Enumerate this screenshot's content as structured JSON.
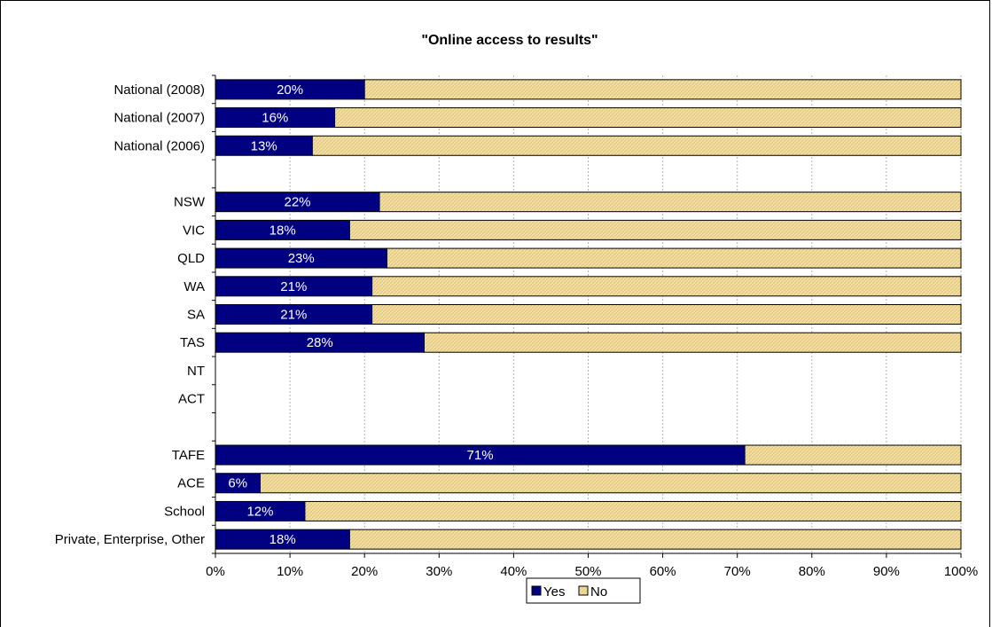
{
  "chart_data": {
    "type": "bar",
    "orientation": "horizontal",
    "stacked": "percent",
    "title": "\"Online access to results\"",
    "xlabel": "",
    "ylabel": "",
    "xlim": [
      0,
      100
    ],
    "x_ticks": [
      "0%",
      "10%",
      "20%",
      "30%",
      "40%",
      "50%",
      "60%",
      "70%",
      "80%",
      "90%",
      "100%"
    ],
    "grid": true,
    "legend_position": "bottom",
    "categories": [
      "National (2008)",
      "National (2007)",
      "National (2006)",
      "",
      "NSW",
      "VIC",
      "QLD",
      "WA",
      "SA",
      "TAS",
      "NT",
      "ACT",
      "",
      "TAFE",
      "ACE",
      "School",
      "Private, Enterprise, Other"
    ],
    "series": [
      {
        "name": "Yes",
        "color": "#000080",
        "values": [
          20,
          16,
          13,
          null,
          22,
          18,
          23,
          21,
          21,
          28,
          null,
          null,
          null,
          71,
          6,
          12,
          18
        ],
        "labels": [
          "20%",
          "16%",
          "13%",
          "",
          "22%",
          "18%",
          "23%",
          "21%",
          "21%",
          "28%",
          "",
          "",
          "",
          "71%",
          "6%",
          "12%",
          "18%"
        ]
      },
      {
        "name": "No",
        "color": "#F3DFA0",
        "values": [
          80,
          84,
          87,
          null,
          78,
          82,
          77,
          79,
          79,
          72,
          null,
          null,
          null,
          29,
          94,
          88,
          82
        ]
      }
    ]
  }
}
